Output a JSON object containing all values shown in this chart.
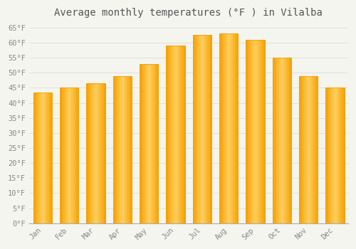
{
  "title": "Average monthly temperatures (°F ) in Vilalba",
  "months": [
    "Jan",
    "Feb",
    "Mar",
    "Apr",
    "May",
    "Jun",
    "Jul",
    "Aug",
    "Sep",
    "Oct",
    "Nov",
    "Dec"
  ],
  "values": [
    43.5,
    45.0,
    46.5,
    49.0,
    53.0,
    59.0,
    62.5,
    63.0,
    61.0,
    55.0,
    49.0,
    45.0
  ],
  "bar_color_center": "#FFD060",
  "bar_color_edge": "#F5A000",
  "background_color": "#F5F5F0",
  "plot_bg_color": "#F5F5F0",
  "grid_color": "#DDDDCC",
  "ylim": [
    0,
    67
  ],
  "yticks": [
    0,
    5,
    10,
    15,
    20,
    25,
    30,
    35,
    40,
    45,
    50,
    55,
    60,
    65
  ],
  "ytick_labels": [
    "0°F",
    "5°F",
    "10°F",
    "15°F",
    "20°F",
    "25°F",
    "30°F",
    "35°F",
    "40°F",
    "45°F",
    "50°F",
    "55°F",
    "60°F",
    "65°F"
  ],
  "title_fontsize": 10,
  "tick_fontsize": 7.5,
  "title_color": "#555555",
  "tick_color": "#888888",
  "spine_color": "#AAAAAA"
}
